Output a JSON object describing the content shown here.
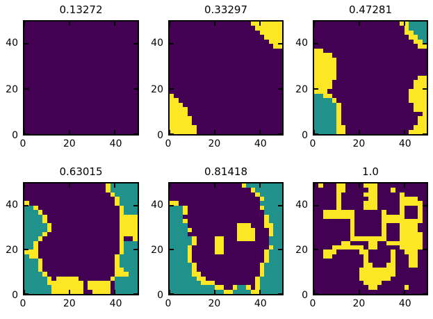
{
  "figure": {
    "background": "#ffffff",
    "spine_color": "#000000",
    "class_colors": {
      "0": "#440154",
      "1": "#21918c",
      "2": "#fde725"
    },
    "class_meaning": {
      "0": "low (purple)",
      "1": "mid (teal)",
      "2": "high (yellow)"
    }
  },
  "chart_data": [
    {
      "type": "heatmap",
      "title": "0.13272",
      "xlim": [
        0,
        50
      ],
      "ylim": [
        0,
        50
      ],
      "x_ticks": [
        "0",
        "20",
        "40"
      ],
      "y_ticks": [
        "0",
        "20",
        "40"
      ],
      "grid_size": [
        25,
        25
      ],
      "rows": [
        "0000000000000000000000000",
        "0000000000000000000000000",
        "0000000000000000000000000",
        "0000000000000000000000000",
        "0000000000000000000000000",
        "0000000000000000000000000",
        "0000000000000000000000000",
        "0000000000000000000000000",
        "0000000000000000000000000",
        "0000000000000000000000000",
        "0000000000000000000000000",
        "0000000000000000000000000",
        "0000000000000000000000000",
        "0000000000000000000000000",
        "0000000000000000000000000",
        "0000000000000000000000000",
        "0000000000000000000000000",
        "0000000000000000000000000",
        "0000000000000000000000000",
        "0000000000000000000000000",
        "0000000000000000000000000",
        "0000000000000000000000000",
        "0000000000000000000000000",
        "0000000000000000000000000",
        "0000000000000000000000000"
      ]
    },
    {
      "type": "heatmap",
      "title": "0.33297",
      "xlim": [
        0,
        50
      ],
      "ylim": [
        0,
        50
      ],
      "x_ticks": [
        "0",
        "20",
        "40"
      ],
      "y_ticks": [
        "0",
        "20",
        "40"
      ],
      "grid_size": [
        25,
        25
      ],
      "rows": [
        "0000000000000000002222222",
        "0000000000000000000222222",
        "0000000000000000000022222",
        "0000000000000000000002222",
        "0000000000000000000000222",
        "0000000000000000000000022",
        "0000000000000000000000000",
        "0000000000000000000000000",
        "0000000000000000000000000",
        "0000000000000000000000000",
        "0000000000000000000000000",
        "0000000000000000000000000",
        "0000000000000000000000000",
        "0000000000000000000000000",
        "0000000000000000000000000",
        "0000000000000000000000000",
        "2000000000000000000000000",
        "2200000000000000000000000",
        "2220000000000000000000000",
        "2222000000000000000000000",
        "2222000000000000000000000",
        "2222200000000000000000000",
        "2222200000000000000000000",
        "2222220000000000000000000",
        "2222220000000000000000000"
      ]
    },
    {
      "type": "heatmap",
      "title": "0.47281",
      "xlim": [
        0,
        50
      ],
      "ylim": [
        0,
        50
      ],
      "x_ticks": [
        "0",
        "20",
        "40"
      ],
      "y_ticks": [
        "0",
        "20",
        "40"
      ],
      "grid_size": [
        25,
        25
      ],
      "rows": [
        "0000000000000000000221111",
        "0000000000000000000021111",
        "0000000000000000000022111",
        "0000000000000000000002211",
        "0000000000000000000000221",
        "0000000000000000000000022",
        "2200000000000000000000000",
        "2222000000000000000000000",
        "2222200000000000000000000",
        "2222200000000000000000000",
        "2222200000000000000000000",
        "2222200000000000000000000",
        "2222200000000000000000022",
        "2222000000000000000000222",
        "2222000000000000000000222",
        "2220000000000000000002222",
        "1122000000000000000002222",
        "1111200000000000000002222",
        "1111120000000000000000222",
        "1111120000000000000000222",
        "1111120000000000000000002",
        "1111120000000000000000022",
        "1111120000000000000000022",
        "1111122000000000000000222",
        "1111122000000000000002222"
      ]
    },
    {
      "type": "heatmap",
      "title": "0.63015",
      "xlim": [
        0,
        50
      ],
      "ylim": [
        0,
        50
      ],
      "x_ticks": [
        "0",
        "20",
        "40"
      ],
      "y_ticks": [
        "0",
        "20",
        "40"
      ],
      "grid_size": [
        25,
        25
      ],
      "rows": [
        "0000000000000000002111111",
        "0000000000000000002111111",
        "0000000000000000000211111",
        "0000000000000000000021111",
        "2000000000000000000021111",
        "1120000000000000000002111",
        "1112000000000000000002111",
        "1111200000000000000002222",
        "1111200000000000000002222",
        "1111120000000000000002222",
        "1111120000000000000002222",
        "1111200000000000000002222",
        "1112000000000000000002002",
        "1120000000000000000002111",
        "1120000000000000000002111",
        "2220000000000000000002111",
        "1220000000000000000021111",
        "1112000000000000000021111",
        "1112000000000000000021111",
        "1112000000000000000022111",
        "1111200000000000000022211",
        "1111120222220000000211111",
        "1111122222222022222011111",
        "1111112222222022222011111",
        "1111112222222002222011111"
      ]
    },
    {
      "type": "heatmap",
      "title": "0.81418",
      "xlim": [
        0,
        50
      ],
      "ylim": [
        0,
        50
      ],
      "x_ticks": [
        "0",
        "20",
        "40"
      ],
      "y_ticks": [
        "0",
        "20",
        "40"
      ],
      "grid_size": [
        25,
        25
      ],
      "rows": [
        "0000000000000000211111111",
        "0000000000000000002111111",
        "0000000000000000000211111",
        "0000000000000000000021111",
        "2200000000000000000011111",
        "1112000000000000000021111",
        "1112000000000000000001111",
        "1110000000000000000002111",
        "1112000000000000000002111",
        "1111000000000002220002211",
        "1111200000000002222000211",
        "1111000000000002222000211",
        "1111120000220002222000111",
        "1111120000220000000000111",
        "1111200000220000000000211",
        "1111200000220000000002111",
        "1111200000000000000002111",
        "1111200000000000000002111",
        "1111120000000000000021111",
        "1111120000000000000021111",
        "1111122000000000000021111",
        "1111112200000000000211111",
        "1111111222000000000211111",
        "1111111111220021120211111",
        "1111111111112211112211111"
      ]
    },
    {
      "type": "heatmap",
      "title": "1.0",
      "xlim": [
        0,
        50
      ],
      "ylim": [
        0,
        50
      ],
      "x_ticks": [
        "0",
        "20",
        "40"
      ],
      "y_ticks": [
        "0",
        "20",
        "40"
      ],
      "grid_size": [
        25,
        25
      ],
      "rows": [
        "0200022000022200000000000",
        "0000022000002200020000000",
        "0000020000022200000200000",
        "0000020000002200000222200",
        "0000020000022200000222220",
        "0000020000022200000200020",
        "0022222220000002000200020",
        "0022222220000002222200020",
        "0000000020000002222222220",
        "0000000020000002000222200",
        "0000000020000002000222200",
        "0000000020000002000222220",
        "0000000022222222000222220",
        "0000002200002200222222220",
        "0000222222202200000222220",
        "0022200000220000020022200",
        "0022000000020000020002200",
        "0000000000020000020002200",
        "0000000000022000220002200",
        "0000000000222222220000000",
        "0000000000222222220000000",
        "0000000000222222200000000",
        "0000000000022220000000000",
        "0000000000002200000020000",
        "0000000000000000000000000"
      ]
    }
  ]
}
